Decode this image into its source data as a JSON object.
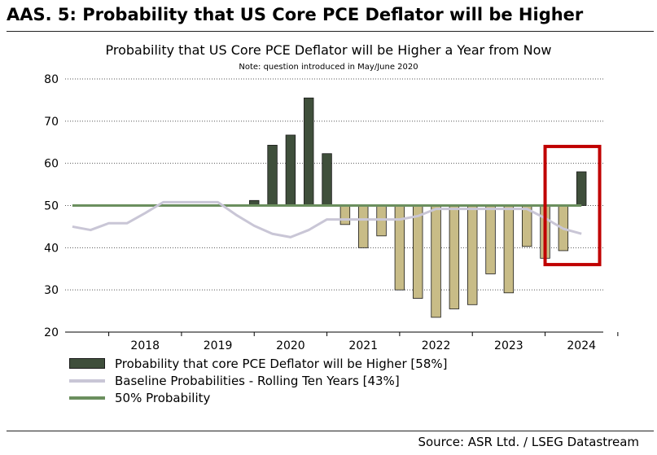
{
  "exhibit_title": "AAS. 5: Probability that US Core PCE Deflator will be Higher",
  "source": "Source: ASR Ltd. / LSEG Datastream",
  "colors": {
    "bar_above": "#3f4f3b",
    "bar_below": "#c8bc87",
    "baseline_line": "#c9c6d6",
    "fifty_line": "#6b8f5e",
    "highlight_box": "#c00000"
  },
  "chart_data": {
    "type": "bar",
    "title": "Probability that US Core PCE Deflator will be Higher a Year from Now",
    "note": "Note: question introduced in May/June 2020",
    "ylim": [
      20,
      80
    ],
    "yticks": [
      20,
      30,
      40,
      50,
      60,
      70,
      80
    ],
    "grid": true,
    "xlim": [
      2017.4,
      2024.8
    ],
    "x_tick_labels": [
      "2018",
      "2019",
      "2020",
      "2021",
      "2022",
      "2023",
      "2024"
    ],
    "bar_base": 50,
    "series": [
      {
        "name": "Probability that core PCE Deflator will be Higher [58%]",
        "kind": "bar",
        "x": [
          2020.0,
          2020.25,
          2020.5,
          2020.75,
          2021.0,
          2021.25,
          2021.5,
          2021.75,
          2022.0,
          2022.25,
          2022.5,
          2022.75,
          2023.0,
          2023.25,
          2023.5,
          2023.75,
          2024.0,
          2024.25,
          2024.5
        ],
        "values": [
          51.2,
          64.3,
          66.7,
          75.5,
          62.3,
          45.5,
          40.0,
          42.8,
          30.0,
          28.0,
          23.5,
          25.5,
          26.5,
          33.8,
          29.3,
          40.3,
          37.5,
          39.3,
          58.0
        ]
      },
      {
        "name": "Baseline Probabilities - Rolling Ten Years [43%]",
        "kind": "line",
        "x": [
          2017.5,
          2017.75,
          2018.0,
          2018.25,
          2018.5,
          2018.75,
          2019.0,
          2019.25,
          2019.5,
          2019.75,
          2020.0,
          2020.25,
          2020.5,
          2020.75,
          2021.0,
          2021.25,
          2021.5,
          2021.75,
          2022.0,
          2022.25,
          2022.5,
          2022.75,
          2023.0,
          2023.25,
          2023.5,
          2023.75,
          2024.0,
          2024.25,
          2024.5
        ],
        "values": [
          45.0,
          44.2,
          45.8,
          45.8,
          48.2,
          50.8,
          50.8,
          50.8,
          50.8,
          47.8,
          45.2,
          43.3,
          42.5,
          44.2,
          46.7,
          46.7,
          46.7,
          46.7,
          46.7,
          47.5,
          49.2,
          49.2,
          49.2,
          49.2,
          49.2,
          49.2,
          47.0,
          44.5,
          43.3
        ]
      },
      {
        "name": "50% Probability",
        "kind": "line",
        "x": [
          2017.5,
          2024.5
        ],
        "values": [
          50,
          50
        ]
      }
    ],
    "highlight": {
      "x_range": [
        2024.0,
        2024.75
      ],
      "y_range": [
        36,
        64
      ]
    }
  }
}
